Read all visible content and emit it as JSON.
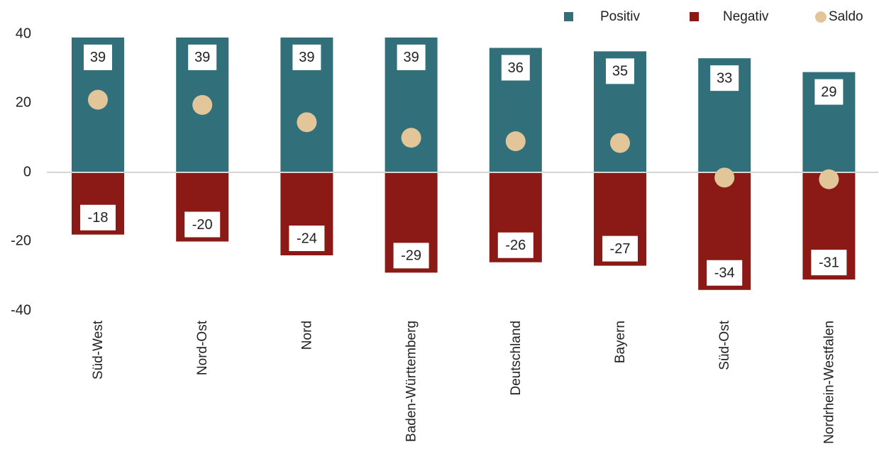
{
  "chart_data": {
    "type": "bar",
    "categories": [
      "Süd-West",
      "Nord-Ost",
      "Nord",
      "Baden-Württemberg",
      "Deutschland",
      "Bayern",
      "Süd-Ost",
      "Nordrhein-Westfalen"
    ],
    "series": [
      {
        "name": "Positiv",
        "values": [
          39,
          39,
          39,
          39,
          36,
          35,
          33,
          29
        ],
        "color": "#31707a"
      },
      {
        "name": "Negativ",
        "values": [
          -18,
          -20,
          -24,
          -29,
          -26,
          -27,
          -34,
          -31
        ],
        "color": "#8b1a16"
      },
      {
        "name": "Saldo",
        "values": [
          21,
          19.5,
          14.5,
          10,
          9,
          8.5,
          -1.5,
          -2
        ],
        "color": "#e2c598",
        "style": "dot"
      }
    ],
    "ylim": [
      -40,
      40
    ],
    "yticks": [
      "40",
      "20",
      "0",
      "-20",
      "-40"
    ],
    "grid": false,
    "legend": "top-right"
  }
}
